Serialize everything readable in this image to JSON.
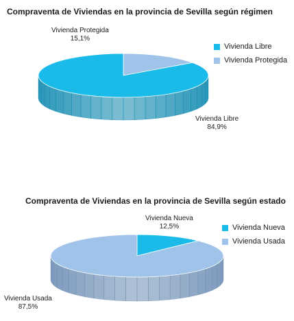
{
  "colors": {
    "libre": "#1bbbe9",
    "libre_dark": "#138ab0",
    "protegida": "#9fc3e9",
    "protegida_dark": "#6f95bf",
    "nueva": "#1bbbe9",
    "usada": "#9fc3e9",
    "usada_dark": "#6f8fb5",
    "nueva_dark": "#1288b0"
  },
  "chart_data": [
    {
      "type": "pie",
      "title": "Compraventa de Viviendas en la provincia de Sevilla según régimen",
      "categories": [
        "Vivienda Libre",
        "Vivienda Protegida"
      ],
      "values": [
        84.9,
        15.1
      ],
      "value_labels": [
        "84,9%",
        "15,1%"
      ],
      "legend": [
        "Vivienda Libre",
        "Vivienda Protegida"
      ],
      "legend_position": "right"
    },
    {
      "type": "pie",
      "title": "Compraventa de Viviendas en la provincia de Sevilla según estado",
      "categories": [
        "Vivienda Nueva",
        "Vivienda Usada"
      ],
      "values": [
        12.5,
        87.5
      ],
      "value_labels": [
        "12,5%",
        "87,5%"
      ],
      "legend": [
        "Vivienda Nueva",
        "Vivienda Usada"
      ],
      "legend_position": "right"
    }
  ]
}
